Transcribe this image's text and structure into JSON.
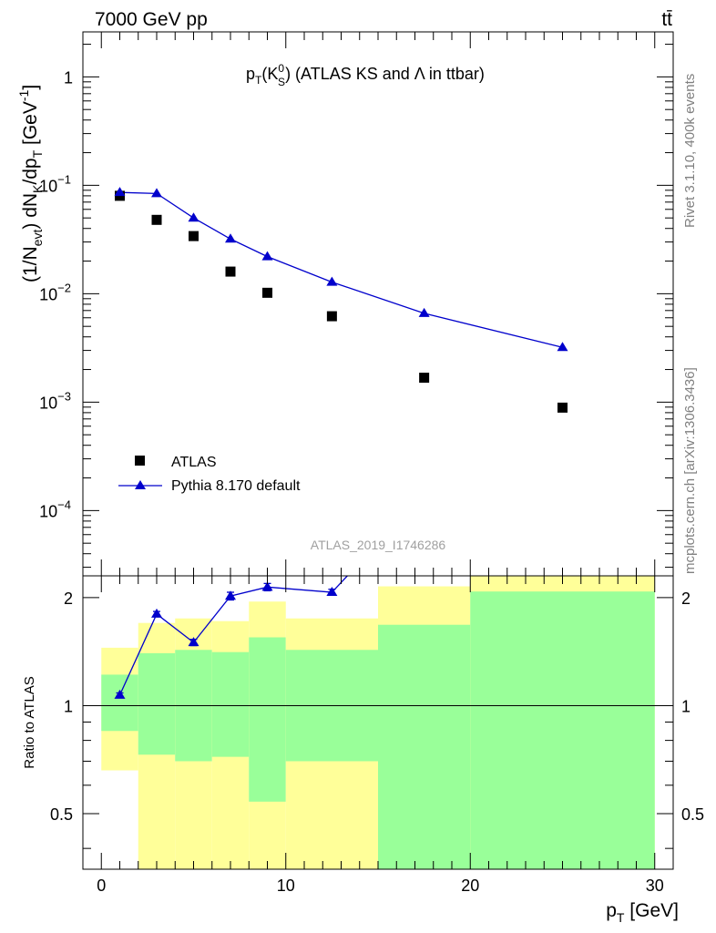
{
  "header": {
    "energy_label": "7000 GeV pp",
    "process_label": "tt̄"
  },
  "side_labels": {
    "rivet": "Rivet 3.1.10,  400k events",
    "mcplots": "mcplots.cern.ch [arXiv:1306.3436]"
  },
  "watermark": "ATLAS_2019_I1746286",
  "chart_data": [
    {
      "type": "scatter",
      "title_parts": {
        "p": "p",
        "p_sub": "T",
        "open": "(K",
        "k_sup": "0",
        "k_sub": "S",
        "close": ") (ATLAS KS and Λ in ttbar)"
      },
      "ylabel_parts": {
        "a": "(1/N",
        "a_sub": "evt",
        "b": ") dN",
        "b_sub": "K",
        "c": "/dp",
        "c_sub": "T",
        "d": " [GeV",
        "d_sup": "-1",
        "e": "]"
      },
      "yscale": "log",
      "xlim": [
        -1,
        31
      ],
      "ylim": [
        2.5e-05,
        2.6
      ],
      "y_ticks": [
        {
          "value": 1,
          "mantissa": "1",
          "exp": ""
        },
        {
          "value": 0.1,
          "mantissa": "10",
          "exp": "−1"
        },
        {
          "value": 0.01,
          "mantissa": "10",
          "exp": "−2"
        },
        {
          "value": 0.001,
          "mantissa": "10",
          "exp": "−3"
        },
        {
          "value": 0.0001,
          "mantissa": "10",
          "exp": "−4"
        }
      ],
      "series": [
        {
          "name": "ATLAS",
          "marker": "square",
          "color": "#000000",
          "x": [
            1,
            3,
            5,
            7,
            9,
            12.5,
            17.5,
            25
          ],
          "y": [
            0.08,
            0.048,
            0.034,
            0.016,
            0.0102,
            0.0062,
            0.00168,
            0.00089
          ]
        },
        {
          "name": "Pythia 8.170 default",
          "marker": "triangle",
          "color": "#0000cc",
          "x": [
            1,
            3,
            5,
            7,
            9,
            12.5,
            17.5,
            25
          ],
          "y": [
            0.086,
            0.084,
            0.05,
            0.032,
            0.022,
            0.0128,
            0.0066,
            0.0032
          ]
        }
      ],
      "legend_position": "lower-left"
    },
    {
      "type": "line",
      "ylabel": "Ratio to ATLAS",
      "xlabel_parts": {
        "p": "p",
        "sub": "T",
        "unit": " [GeV]"
      },
      "xlim": [
        -1,
        31
      ],
      "ylim": [
        0.35,
        2.3
      ],
      "x_ticks": [
        0,
        10,
        20,
        30
      ],
      "y_ticks": [
        "0.5",
        "1",
        "2"
      ],
      "reference_line": 1,
      "bands": [
        {
          "x0": 0,
          "x1": 2,
          "yellow": [
            0.66,
            1.45
          ],
          "green": [
            0.85,
            1.22
          ]
        },
        {
          "x0": 2,
          "x1": 4,
          "yellow": [
            0.35,
            1.7
          ],
          "green": [
            0.73,
            1.4
          ]
        },
        {
          "x0": 4,
          "x1": 6,
          "yellow": [
            0.35,
            1.75
          ],
          "green": [
            0.7,
            1.43
          ]
        },
        {
          "x0": 6,
          "x1": 8,
          "yellow": [
            0.35,
            1.72
          ],
          "green": [
            0.72,
            1.41
          ]
        },
        {
          "x0": 8,
          "x1": 10,
          "yellow": [
            0.35,
            1.95
          ],
          "green": [
            0.54,
            1.55
          ]
        },
        {
          "x0": 10,
          "x1": 15,
          "yellow": [
            0.35,
            1.75
          ],
          "green": [
            0.7,
            1.43
          ]
        },
        {
          "x0": 15,
          "x1": 20,
          "yellow": [
            0.35,
            2.15
          ],
          "green": [
            0.35,
            1.68
          ]
        },
        {
          "x0": 20,
          "x1": 30,
          "yellow": [
            0.35,
            2.3
          ],
          "green": [
            0.35,
            2.08
          ]
        }
      ],
      "series": [
        {
          "name": "Pythia 8.170 default",
          "color": "#0000cc",
          "x": [
            1,
            3,
            5,
            7,
            9,
            12.5,
            14
          ],
          "y": [
            1.07,
            1.8,
            1.5,
            2.02,
            2.14,
            2.07,
            2.5
          ],
          "err": [
            0.015,
            0.03,
            0.03,
            0.05,
            0.05,
            0.04,
            0
          ],
          "markers": [
            true,
            true,
            true,
            true,
            true,
            true,
            false
          ]
        }
      ],
      "bands_colors": {
        "yellow": "#ffff99",
        "green": "#99ff99"
      }
    }
  ]
}
